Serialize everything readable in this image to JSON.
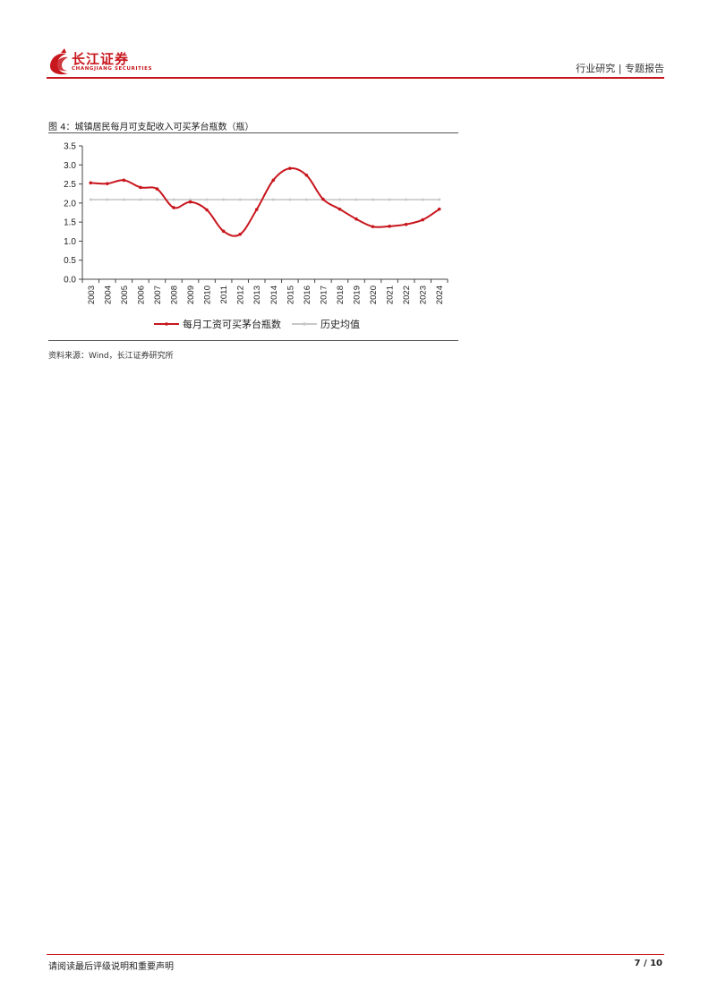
{
  "header": {
    "brand_cn": "长江证券",
    "brand_en": "CHANGJIANG SECURITIES",
    "section": "行业研究 | 专题报告",
    "accent_color": "#c8161d"
  },
  "figure": {
    "title": "图 4：城镇居民每月可支配收入可买茅台瓶数（瓶）",
    "source": "资料来源：Wind，长江证券研究所"
  },
  "chart_data": {
    "type": "line",
    "x": [
      "2003",
      "2004",
      "2005",
      "2006",
      "2007",
      "2008",
      "2009",
      "2010",
      "2011",
      "2012",
      "2013",
      "2014",
      "2015",
      "2016",
      "2017",
      "2018",
      "2019",
      "2020",
      "2021",
      "2022",
      "2023",
      "2024"
    ],
    "yticks": [
      "0.0",
      "0.5",
      "1.0",
      "1.5",
      "2.0",
      "2.5",
      "3.0",
      "3.5"
    ],
    "ylim": [
      0,
      3.5
    ],
    "series": [
      {
        "name": "每月工资可买茅台瓶数",
        "color": "#c8161d",
        "values": [
          2.53,
          2.51,
          2.6,
          2.41,
          2.37,
          1.88,
          2.03,
          1.82,
          1.26,
          1.18,
          1.83,
          2.6,
          2.91,
          2.73,
          2.1,
          1.84,
          1.58,
          1.38,
          1.39,
          1.44,
          1.56,
          1.84
        ]
      },
      {
        "name": "历史均值",
        "color": "#c8c8c8",
        "values": [
          2.09,
          2.09,
          2.09,
          2.09,
          2.09,
          2.09,
          2.09,
          2.09,
          2.09,
          2.09,
          2.09,
          2.09,
          2.09,
          2.09,
          2.09,
          2.09,
          2.09,
          2.09,
          2.09,
          2.09,
          2.09,
          2.09
        ]
      }
    ],
    "grid": false,
    "legend": "bottom"
  },
  "footer": {
    "disclaimer": "请阅读最后评级说明和重要声明",
    "page": "7 / 10"
  }
}
